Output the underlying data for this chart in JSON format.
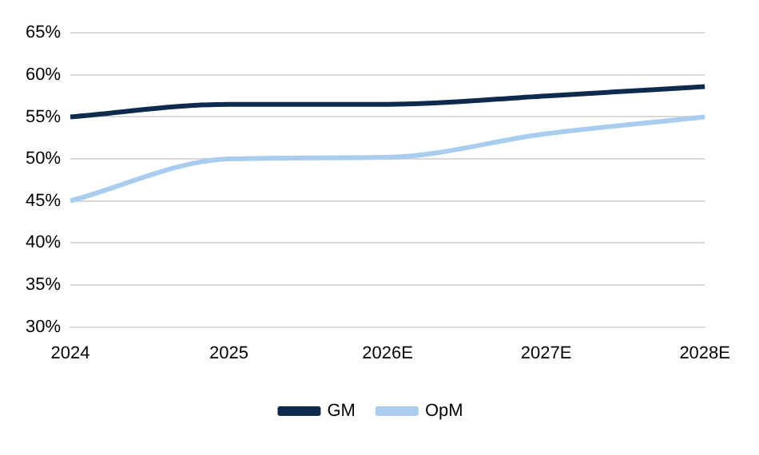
{
  "chart_data": {
    "type": "line",
    "categories": [
      "2024",
      "2025",
      "2026E",
      "2027E",
      "2028E"
    ],
    "series": [
      {
        "name": "GM",
        "color": "#0e2a4d",
        "values": [
          55,
          56.5,
          56.5,
          57.5,
          58.6
        ]
      },
      {
        "name": "OpM",
        "color": "#a8cdee",
        "values": [
          45,
          50,
          50.2,
          53,
          55
        ]
      }
    ],
    "ylim": [
      30,
      65
    ],
    "yticks": [
      {
        "value": 30,
        "label": "30%"
      },
      {
        "value": 35,
        "label": "35%"
      },
      {
        "value": 40,
        "label": "40%"
      },
      {
        "value": 45,
        "label": "45%"
      },
      {
        "value": 50,
        "label": "50%"
      },
      {
        "value": 55,
        "label": "55%"
      },
      {
        "value": 60,
        "label": "60%"
      },
      {
        "value": 65,
        "label": "65%"
      }
    ],
    "grid": "y",
    "legend": "bottom",
    "marker": "none",
    "line_style": "solid"
  }
}
